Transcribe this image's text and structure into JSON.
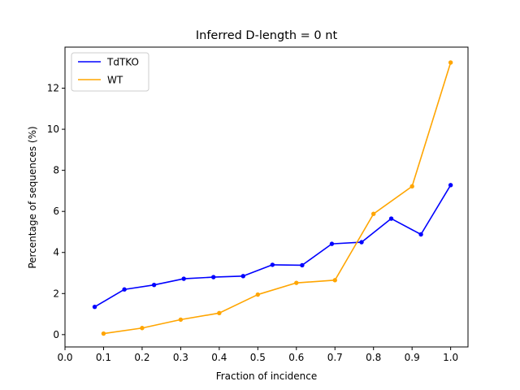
{
  "chart_data": {
    "type": "line",
    "title": "Inferred D-length = 0 nt",
    "xlabel": "Fraction of incidence",
    "ylabel": "Percentage of sequences (%)",
    "xlim": [
      0.0,
      1.045
    ],
    "ylim": [
      -0.6,
      14.0
    ],
    "xticks": [
      0.0,
      0.1,
      0.2,
      0.3,
      0.4,
      0.5,
      0.6,
      0.7,
      0.8,
      0.9,
      1.0
    ],
    "xtick_labels": [
      "0.0",
      "0.1",
      "0.2",
      "0.3",
      "0.4",
      "0.5",
      "0.6",
      "0.7",
      "0.8",
      "0.9",
      "1.0"
    ],
    "yticks": [
      0,
      2,
      4,
      6,
      8,
      10,
      12
    ],
    "ytick_labels": [
      "0",
      "2",
      "4",
      "6",
      "8",
      "10",
      "12"
    ],
    "grid": false,
    "legend_position": "top-left",
    "series": [
      {
        "name": "TdTKO",
        "color": "#0000ff",
        "x": [
          0.077,
          0.154,
          0.231,
          0.308,
          0.385,
          0.462,
          0.538,
          0.615,
          0.692,
          0.769,
          0.846,
          0.923,
          1.0
        ],
        "y": [
          1.35,
          2.2,
          2.42,
          2.72,
          2.8,
          2.85,
          3.4,
          3.38,
          4.42,
          4.5,
          5.65,
          4.88,
          7.28
        ]
      },
      {
        "name": "WT",
        "color": "#ffa500",
        "x": [
          0.1,
          0.2,
          0.3,
          0.4,
          0.5,
          0.6,
          0.7,
          0.8,
          0.9,
          1.0
        ],
        "y": [
          0.05,
          0.32,
          0.73,
          1.05,
          1.95,
          2.52,
          2.65,
          5.88,
          7.22,
          13.25
        ]
      }
    ]
  }
}
